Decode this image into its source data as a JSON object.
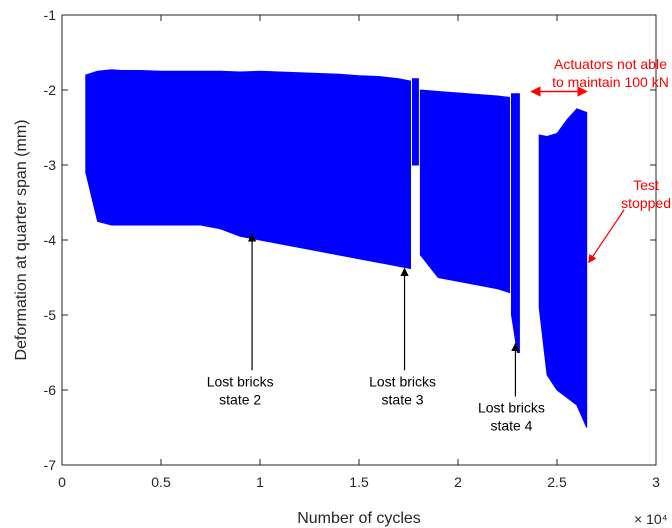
{
  "chart_data": {
    "type": "line",
    "title": "",
    "xlabel": "Number of cycles",
    "ylabel": "Deformation at quarter span (mm)",
    "x_scale_label": "× 10⁴",
    "xlim": [
      0,
      3
    ],
    "ylim": [
      -7,
      -1
    ],
    "xticks": [
      0,
      0.5,
      1,
      1.5,
      2,
      2.5,
      3
    ],
    "xtick_labels": [
      "0",
      "0.5",
      "1",
      "1.5",
      "2",
      "2.5",
      "3"
    ],
    "yticks": [
      -7,
      -6,
      -5,
      -4,
      -3,
      -2,
      -1
    ],
    "ytick_labels": [
      "-7",
      "-6",
      "-5",
      "-4",
      "-3",
      "-2",
      "-1"
    ],
    "grid": false,
    "series_color": "#0000ff",
    "series": [
      {
        "segments": [
          {
            "x": [
              0.12,
              0.18,
              0.25,
              0.3,
              0.4,
              0.5,
              0.6,
              0.7,
              0.8,
              0.9,
              1.0,
              1.1,
              1.2,
              1.3,
              1.4,
              1.5,
              1.6,
              1.7,
              1.76
            ],
            "upper": [
              -1.8,
              -1.75,
              -1.73,
              -1.74,
              -1.74,
              -1.75,
              -1.75,
              -1.75,
              -1.75,
              -1.76,
              -1.75,
              -1.76,
              -1.77,
              -1.78,
              -1.79,
              -1.81,
              -1.82,
              -1.85,
              -1.88
            ],
            "lower": [
              -3.1,
              -3.75,
              -3.8,
              -3.8,
              -3.8,
              -3.8,
              -3.8,
              -3.8,
              -3.85,
              -3.95,
              -4.0,
              -4.05,
              -4.1,
              -4.15,
              -4.2,
              -4.25,
              -4.3,
              -4.35,
              -4.38
            ]
          },
          {
            "x": [
              1.77,
              1.8
            ],
            "upper": [
              -1.85,
              -1.85
            ],
            "lower": [
              -3.0,
              -3.0
            ]
          },
          {
            "x": [
              1.81,
              1.9,
              2.0,
              2.1,
              2.2,
              2.26
            ],
            "upper": [
              -2.0,
              -2.02,
              -2.04,
              -2.06,
              -2.08,
              -2.1
            ],
            "lower": [
              -4.2,
              -4.5,
              -4.55,
              -4.6,
              -4.65,
              -4.7
            ]
          },
          {
            "x": [
              2.27,
              2.3,
              2.31
            ],
            "upper": [
              -2.05,
              -2.05,
              -2.05
            ],
            "lower": [
              -5.0,
              -5.5,
              -5.5
            ]
          },
          {
            "x": [
              2.41,
              2.45,
              2.5,
              2.55,
              2.6,
              2.65
            ],
            "upper": [
              -2.6,
              -2.62,
              -2.58,
              -2.4,
              -2.25,
              -2.3
            ],
            "lower": [
              -4.9,
              -5.8,
              -6.0,
              -6.1,
              -6.2,
              -6.5
            ]
          }
        ]
      }
    ],
    "annotations": [
      {
        "lines": [
          "Lost bricks",
          "state 2"
        ],
        "color": "#000000",
        "arrow_to": [
          0.96,
          -3.92
        ],
        "text_at": [
          0.9,
          -5.95
        ]
      },
      {
        "lines": [
          "Lost bricks",
          "state 3"
        ],
        "color": "#000000",
        "arrow_to": [
          1.73,
          -4.38
        ],
        "text_at": [
          1.72,
          -5.95
        ]
      },
      {
        "lines": [
          "Lost bricks",
          "state 4"
        ],
        "color": "#000000",
        "arrow_to": [
          2.29,
          -5.38
        ],
        "text_at": [
          2.27,
          -6.3
        ]
      },
      {
        "lines": [
          "Actuators not able",
          "to maintain 100 kN"
        ],
        "color": "#ff0000",
        "double_arrow": [
          2.37,
          2.65
        ],
        "arrow_y": -2.02,
        "text_at": [
          2.77,
          -1.72
        ]
      },
      {
        "lines": [
          "Test",
          "stopped"
        ],
        "color": "#ff0000",
        "arrow_to": [
          2.66,
          -4.3
        ],
        "text_at": [
          2.95,
          -3.33
        ]
      }
    ]
  }
}
